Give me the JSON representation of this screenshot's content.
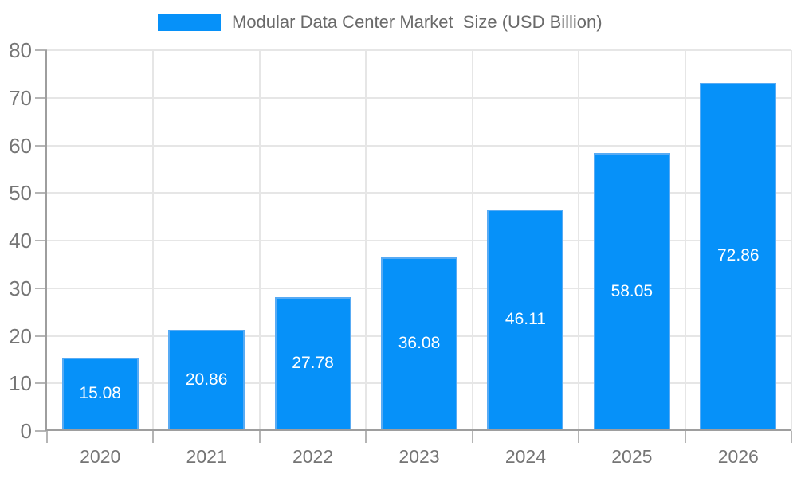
{
  "chart_data": {
    "type": "bar",
    "title": "Modular Data Center Market  Size (USD Billion)",
    "categories": [
      "2020",
      "2021",
      "2022",
      "2023",
      "2024",
      "2025",
      "2026"
    ],
    "values": [
      15.08,
      20.86,
      27.78,
      36.08,
      46.11,
      58.05,
      72.86
    ],
    "value_labels": [
      "15.08",
      "20.86",
      "27.78",
      "36.08",
      "46.11",
      "58.05",
      "72.86"
    ],
    "xlabel": "",
    "ylabel": "",
    "ylim": [
      0,
      80
    ],
    "yticks": [
      0,
      10,
      20,
      30,
      40,
      50,
      60,
      70,
      80
    ],
    "grid": true,
    "legend_position": "top",
    "colors": {
      "bar_fill": "#0691f9",
      "bar_edge": "#58abf4",
      "bar_label": "#ffffff",
      "axis_line": "#9e9e9e",
      "gridline": "#e6e6e6",
      "tick_mark": "#b5b5b5",
      "tick_label": "#757575",
      "legend_text": "#6a6a6a",
      "background": "#ffffff"
    }
  }
}
